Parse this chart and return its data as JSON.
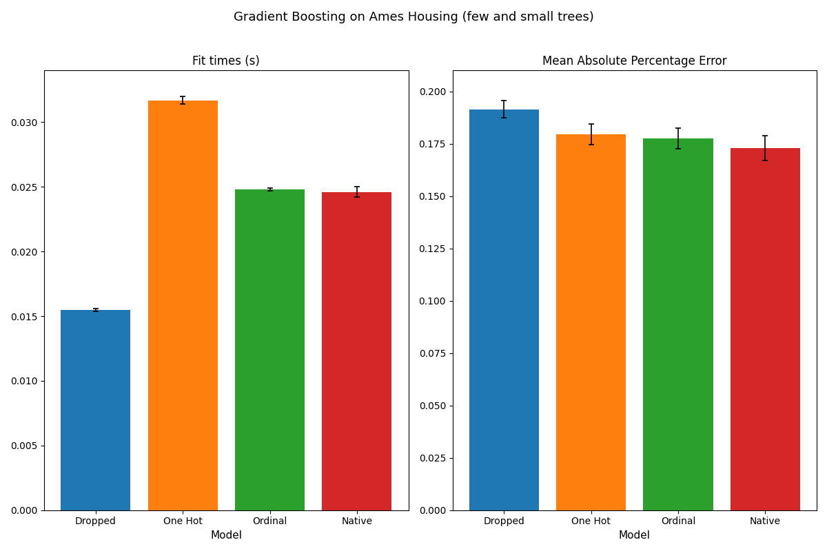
{
  "title": "Gradient Boosting on Ames Housing (few and small trees)",
  "categories": [
    "Dropped",
    "One Hot",
    "Ordinal",
    "Native"
  ],
  "colors": [
    "#1f77b4",
    "#ff7f0e",
    "#2ca02c",
    "#d62728"
  ],
  "fit_times": {
    "title": "Fit times (s)",
    "values": [
      0.0155,
      0.0317,
      0.0248,
      0.0246
    ],
    "errors": [
      0.0001,
      0.0003,
      0.0001,
      0.0004
    ],
    "xlabel": "Model",
    "ylim": [
      0,
      0.034
    ]
  },
  "mape": {
    "title": "Mean Absolute Percentage Error",
    "values": [
      0.1915,
      0.1795,
      0.1775,
      0.173
    ],
    "errors": [
      0.004,
      0.005,
      0.005,
      0.006
    ],
    "xlabel": "Model",
    "ylim": [
      0,
      0.21
    ]
  },
  "title_fontsize": 13,
  "subtitle_fontsize": 12,
  "tick_fontsize": 10,
  "label_fontsize": 11
}
